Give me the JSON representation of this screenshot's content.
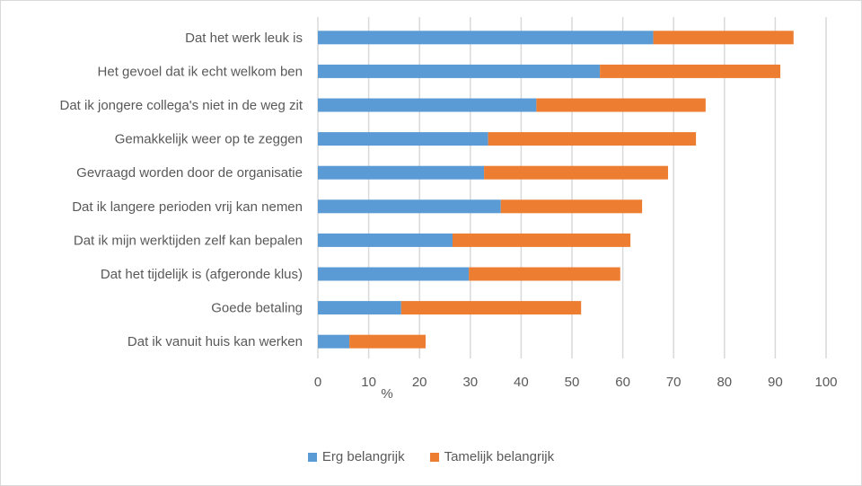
{
  "chart_data": {
    "type": "bar",
    "orientation": "horizontal",
    "stacked": true,
    "title": "",
    "xlabel": "%",
    "ylabel": "",
    "xlim": [
      0,
      100
    ],
    "xticks": [
      "0",
      "10",
      "20",
      "30",
      "40",
      "50",
      "60",
      "70",
      "80",
      "90",
      "100"
    ],
    "grid": true,
    "legend_position": "bottom",
    "categories": [
      "Dat het werk leuk is",
      "Het gevoel dat ik echt welkom ben",
      "Dat ik jongere collega's niet in de weg zit",
      "Gemakkelijk weer op te zeggen",
      "Gevraagd worden door de organisatie",
      "Dat ik langere perioden vrij kan nemen",
      "Dat ik mijn werktijden zelf kan bepalen",
      "Dat het tijdelijk is (afgeronde klus)",
      "Goede betaling",
      "Dat ik vanuit huis kan werken"
    ],
    "series": [
      {
        "name": "Erg belangrijk",
        "color": "#5b9bd5",
        "values": [
          66,
          55.5,
          43,
          33.5,
          32.7,
          36,
          26.5,
          29.7,
          16.4,
          6.2
        ]
      },
      {
        "name": "Tamelijk belangrijk",
        "color": "#ed7d31",
        "values": [
          27.6,
          35.5,
          33.3,
          40.9,
          36.2,
          27.8,
          35,
          29.8,
          35.4,
          15
        ]
      }
    ]
  }
}
